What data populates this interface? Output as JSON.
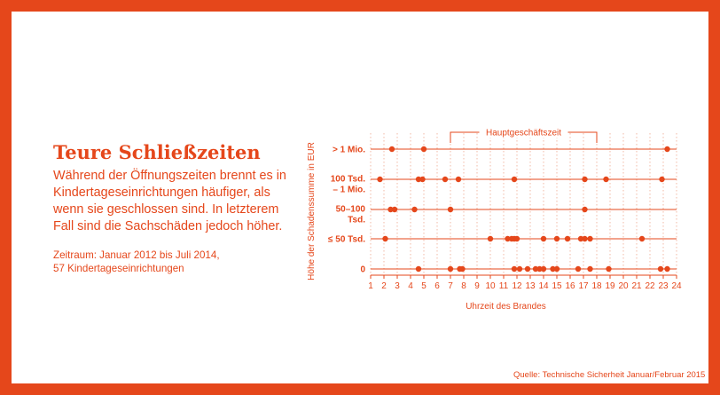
{
  "colors": {
    "accent": "#e5471b",
    "background": "#ffffff",
    "grid": "#f2b8a4"
  },
  "header": {
    "title": "Teure Schließzeiten",
    "subtitle_lines": [
      "Während der Öffnungszeiten brennt es in",
      "Kindertageseinrichtungen häufiger, als",
      "wenn sie geschlossen sind. In letzterem",
      "Fall sind die Sachschäden jedoch höher."
    ],
    "period_lines": [
      "Zeitraum: Januar 2012 bis Juli 2014,",
      "57 Kindertageseinrichtungen"
    ]
  },
  "source": "Quelle: Technische Sicherheit Januar/Februar 2015",
  "chart_data": {
    "type": "scatter",
    "title": "",
    "xlabel": "Uhrzeit des Brandes",
    "ylabel": "Höhe der Schadenssumme in EUR",
    "xlim": [
      1,
      24
    ],
    "x_ticks": [
      1,
      2,
      3,
      4,
      5,
      6,
      7,
      8,
      9,
      10,
      11,
      12,
      13,
      14,
      15,
      16,
      17,
      18,
      19,
      20,
      21,
      22,
      23,
      24
    ],
    "categories": [
      {
        "key": "gt1m",
        "label_lines": [
          "> 1 Mio."
        ]
      },
      {
        "key": "100k_1m",
        "label_lines": [
          "100 Tsd.",
          "– 1 Mio."
        ]
      },
      {
        "key": "50_100k",
        "label_lines": [
          "50–100",
          "Tsd."
        ]
      },
      {
        "key": "le50k",
        "label_lines": [
          "≤ 50 Tsd."
        ]
      },
      {
        "key": "zero",
        "label_lines": [
          "0"
        ]
      }
    ],
    "bracket": {
      "label": "Hauptgeschäftszeit",
      "from": 7,
      "to": 18
    },
    "grid": true,
    "points": {
      "gt1m": [
        2.6,
        5.0,
        23.3
      ],
      "100k_1m": [
        1.7,
        4.6,
        4.9,
        6.6,
        7.6,
        11.8,
        17.1,
        18.7,
        22.9
      ],
      "50_100k": [
        2.5,
        2.8,
        4.3,
        7.0,
        17.1
      ],
      "le50k": [
        2.1,
        10.0,
        11.3,
        11.6,
        11.8,
        12.0,
        14.0,
        15.0,
        15.8,
        16.8,
        17.1,
        17.5,
        21.4
      ],
      "zero": [
        4.6,
        7.0,
        7.7,
        7.9,
        11.8,
        12.2,
        12.8,
        13.4,
        13.7,
        14.0,
        14.7,
        15.0,
        16.6,
        17.5,
        18.9,
        22.8,
        23.3
      ]
    }
  }
}
